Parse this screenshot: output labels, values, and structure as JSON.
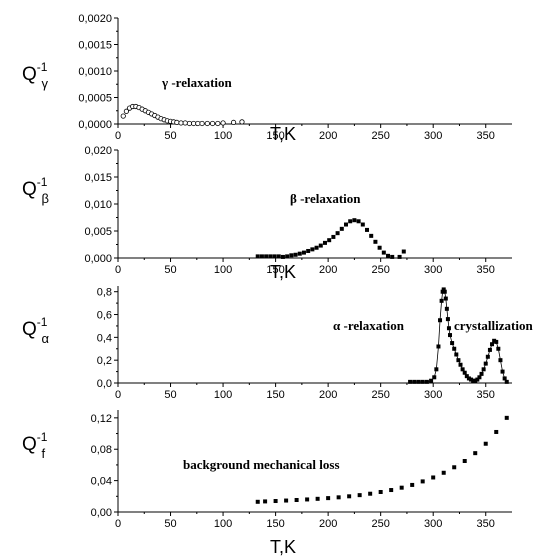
{
  "chart_data": [
    {
      "type": "scatter",
      "ylabel": {
        "main": "Q",
        "sup": "-1",
        "sub": "γ"
      },
      "xlabel": "T,K",
      "xlim": [
        0,
        375
      ],
      "ylim": [
        0,
        0.002
      ],
      "xticks": [
        0,
        50,
        100,
        150,
        200,
        250,
        300,
        350
      ],
      "yticks": [
        "0,0000",
        "0,0005",
        "0,0010",
        "0,0015",
        "0,0020"
      ],
      "ytick_values": [
        0,
        0.0005,
        0.001,
        0.0015,
        0.002
      ],
      "marker": "open-circle",
      "annotation": "γ -relaxation",
      "series": [
        {
          "x": [
            5,
            8,
            11,
            14,
            17,
            20,
            23,
            26,
            29,
            32,
            35,
            38,
            41,
            44,
            47,
            50,
            53,
            56,
            60,
            64,
            68,
            72,
            76,
            80,
            85,
            90,
            95,
            100,
            110,
            118
          ],
          "y": [
            0.00015,
            0.00024,
            0.0003,
            0.00033,
            0.00033,
            0.00031,
            0.00028,
            0.00025,
            0.00022,
            0.00019,
            0.00016,
            0.00013,
            0.0001,
            8e-05,
            6e-05,
            5e-05,
            4e-05,
            3e-05,
            2e-05,
            2e-05,
            1e-05,
            1e-05,
            1e-05,
            1e-05,
            1e-05,
            1e-05,
            1e-05,
            2e-05,
            3e-05,
            4e-05
          ]
        }
      ]
    },
    {
      "type": "scatter",
      "ylabel": {
        "main": "Q",
        "sup": "-1",
        "sub": "β"
      },
      "xlabel": "T,K",
      "xlim": [
        0,
        375
      ],
      "ylim": [
        0,
        0.02
      ],
      "xticks": [
        0,
        50,
        100,
        150,
        200,
        250,
        300,
        350
      ],
      "yticks": [
        "0,000",
        "0,005",
        "0,010",
        "0,015",
        "0,020"
      ],
      "ytick_values": [
        0,
        0.005,
        0.01,
        0.015,
        0.02
      ],
      "marker": "filled-square",
      "annotation": "β -relaxation",
      "series": [
        {
          "x": [
            133,
            137,
            141,
            145,
            149,
            153,
            157,
            161,
            165,
            169,
            173,
            177,
            181,
            185,
            189,
            193,
            197,
            201,
            205,
            209,
            213,
            217,
            221,
            225,
            229,
            233,
            237,
            241,
            245,
            249,
            253,
            257,
            261,
            268,
            272
          ],
          "y": [
            0.0003,
            0.0003,
            0.0003,
            0.0003,
            0.0003,
            0.0003,
            0.0002,
            0.0003,
            0.0005,
            0.0006,
            0.0008,
            0.001,
            0.0013,
            0.0016,
            0.0019,
            0.0023,
            0.0028,
            0.0033,
            0.0039,
            0.0046,
            0.0054,
            0.0062,
            0.0068,
            0.007,
            0.0068,
            0.0062,
            0.0052,
            0.0041,
            0.003,
            0.0019,
            0.001,
            0.0004,
            0.0002,
            0.0002,
            0.0012
          ]
        }
      ]
    },
    {
      "type": "scatter",
      "ylabel": {
        "main": "Q",
        "sup": "-1",
        "sub": "α"
      },
      "xlabel": "",
      "xlim": [
        0,
        375
      ],
      "ylim": [
        0,
        0.85
      ],
      "xticks": [
        0,
        50,
        100,
        150,
        200,
        250,
        300,
        350
      ],
      "yticks": [
        "0,0",
        "0,2",
        "0,4",
        "0,6",
        "0,8"
      ],
      "ytick_values": [
        0,
        0.2,
        0.4,
        0.6,
        0.8
      ],
      "marker": "filled-square",
      "annotations": [
        "α -relaxation",
        "crystallization"
      ],
      "series": [
        {
          "x": [
            278,
            282,
            286,
            290,
            294,
            298,
            301,
            303,
            305,
            306.5,
            308,
            309,
            310,
            311,
            312,
            313,
            314,
            315,
            316,
            318,
            320,
            322,
            324,
            326,
            328,
            330,
            332,
            334,
            336,
            338,
            340,
            342,
            344,
            346,
            348,
            350,
            352,
            354,
            356,
            358,
            360,
            362,
            364,
            366,
            368,
            370
          ],
          "y": [
            0.01,
            0.01,
            0.01,
            0.01,
            0.01,
            0.02,
            0.05,
            0.12,
            0.32,
            0.55,
            0.72,
            0.8,
            0.82,
            0.8,
            0.74,
            0.65,
            0.56,
            0.48,
            0.42,
            0.35,
            0.3,
            0.25,
            0.2,
            0.16,
            0.12,
            0.09,
            0.06,
            0.04,
            0.03,
            0.02,
            0.02,
            0.03,
            0.05,
            0.08,
            0.12,
            0.17,
            0.23,
            0.29,
            0.34,
            0.37,
            0.36,
            0.3,
            0.2,
            0.1,
            0.04,
            0.01
          ]
        }
      ]
    },
    {
      "type": "scatter",
      "ylabel": {
        "main": "Q",
        "sup": "-1",
        "sub": "f"
      },
      "xlabel": "T,K",
      "xlim": [
        0,
        375
      ],
      "ylim": [
        0,
        0.13
      ],
      "xticks": [
        0,
        50,
        100,
        150,
        200,
        250,
        300,
        350
      ],
      "yticks": [
        "0,00",
        "0,04",
        "0,08",
        "0,12"
      ],
      "ytick_values": [
        0,
        0.04,
        0.08,
        0.12
      ],
      "marker": "filled-square",
      "annotation": "background mechanical loss",
      "series": [
        {
          "x": [
            133,
            140,
            150,
            160,
            170,
            180,
            190,
            200,
            210,
            220,
            230,
            240,
            250,
            260,
            270,
            280,
            290,
            300,
            310,
            320,
            330,
            340,
            350,
            360,
            370
          ],
          "y": [
            0.013,
            0.0135,
            0.014,
            0.0146,
            0.0153,
            0.016,
            0.0168,
            0.0177,
            0.0187,
            0.02,
            0.0215,
            0.0233,
            0.0255,
            0.028,
            0.031,
            0.0345,
            0.039,
            0.044,
            0.05,
            0.057,
            0.065,
            0.075,
            0.087,
            0.102,
            0.12
          ]
        }
      ]
    }
  ]
}
